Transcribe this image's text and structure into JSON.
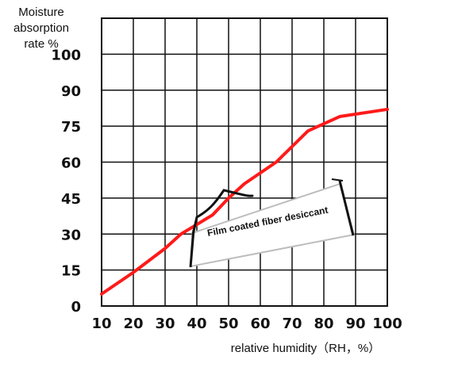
{
  "chart_data": {
    "type": "line",
    "ylabel_lines": [
      "Moisture",
      "absorption",
      "rate %"
    ],
    "xlabel": "relative humidity（RH，%）",
    "x_ticks": [
      "10",
      "20",
      "30",
      "40",
      "50",
      "60",
      "70",
      "80",
      "90",
      "100"
    ],
    "y_ticks": [
      "0",
      "15",
      "30",
      "45",
      "60",
      "75",
      "90",
      "100"
    ],
    "xlim": [
      10,
      100
    ],
    "grid": true,
    "series": [
      {
        "color": "#ff1a1a",
        "points": [
          {
            "x": 10,
            "y": 5
          },
          {
            "x": 20,
            "y": 14
          },
          {
            "x": 30,
            "y": 24
          },
          {
            "x": 35,
            "y": 30
          },
          {
            "x": 40,
            "y": 34
          },
          {
            "x": 45,
            "y": 38
          },
          {
            "x": 50,
            "y": 45
          },
          {
            "x": 55,
            "y": 51
          },
          {
            "x": 65,
            "y": 60
          },
          {
            "x": 75,
            "y": 73
          },
          {
            "x": 85,
            "y": 79
          },
          {
            "x": 100,
            "y": 82
          }
        ]
      }
    ],
    "annotation": {
      "text": "Film coated fiber desiccant",
      "target": {
        "x": 50,
        "y": 45
      }
    }
  }
}
